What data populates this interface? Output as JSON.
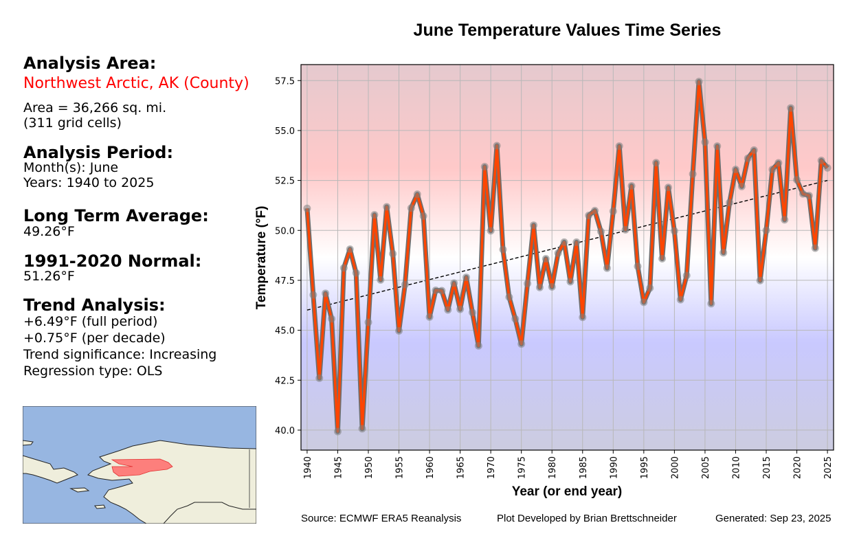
{
  "left_panel": {
    "area_heading": "Analysis Area:",
    "area_name": "Northwest Arctic, AK (County)",
    "area_size": "Area = 36,266 sq. mi.",
    "grid_cells": "(311 grid cells)",
    "period_heading": "Analysis Period:",
    "months": "Month(s): June",
    "years": "Years: 1940 to 2025",
    "lta_heading": "Long Term Average:",
    "lta_value": "49.26°F",
    "normal_heading": "1991-2020 Normal:",
    "normal_value": "51.26°F",
    "trend_heading": "Trend Analysis:",
    "trend_full": "+6.49°F (full period)",
    "trend_decade": "+0.75°F (per decade)",
    "trend_significance": "Trend significance: Increasing",
    "regression_type": "Regression type: OLS"
  },
  "colors": {
    "area_name": "#ff0000",
    "line": "#ff4500",
    "marker": "#808080",
    "highlight_region": "#ff6b6b",
    "water": "#97b6e1",
    "land": "#efeedc"
  },
  "footer": {
    "source": "Source: ECMWF ERA5 Reanalysis",
    "developer": "Plot Developed by Brian Brettschneider",
    "generated": "Generated: Sep 23, 2025"
  },
  "chart_data": {
    "type": "line",
    "title": "June Temperature Values Time Series",
    "xlabel": "Year (or end year)",
    "ylabel": "Temperature (°F)",
    "xlim": [
      1939,
      2026
    ],
    "ylim": [
      39.0,
      58.3
    ],
    "grid": true,
    "x_ticks": [
      1940,
      1945,
      1950,
      1955,
      1960,
      1965,
      1970,
      1975,
      1980,
      1985,
      1990,
      1995,
      2000,
      2005,
      2010,
      2015,
      2020,
      2025
    ],
    "y_ticks": [
      40.0,
      42.5,
      45.0,
      47.5,
      50.0,
      52.5,
      55.0,
      57.5
    ],
    "y_tick_labels": [
      "40.0",
      "42.5",
      "45.0",
      "47.5",
      "50.0",
      "52.5",
      "55.0",
      "57.5"
    ],
    "x": [
      1940,
      1941,
      1942,
      1943,
      1944,
      1945,
      1946,
      1947,
      1948,
      1949,
      1950,
      1951,
      1952,
      1953,
      1954,
      1955,
      1956,
      1957,
      1958,
      1959,
      1960,
      1961,
      1962,
      1963,
      1964,
      1965,
      1966,
      1967,
      1968,
      1969,
      1970,
      1971,
      1972,
      1973,
      1974,
      1975,
      1976,
      1977,
      1978,
      1979,
      1980,
      1981,
      1982,
      1983,
      1984,
      1985,
      1986,
      1987,
      1988,
      1989,
      1990,
      1991,
      1992,
      1993,
      1994,
      1995,
      1996,
      1997,
      1998,
      1999,
      2000,
      2001,
      2002,
      2003,
      2004,
      2005,
      2006,
      2007,
      2008,
      2009,
      2010,
      2011,
      2012,
      2013,
      2014,
      2015,
      2016,
      2017,
      2018,
      2019,
      2020,
      2021,
      2022,
      2023,
      2024,
      2025
    ],
    "series": [
      {
        "name": "June Temperature",
        "values": [
          51.1,
          46.77,
          42.6,
          46.85,
          45.57,
          39.93,
          48.12,
          49.06,
          47.87,
          40.07,
          45.4,
          50.78,
          47.52,
          51.18,
          48.83,
          44.97,
          47.29,
          51.12,
          51.81,
          50.72,
          45.66,
          47.0,
          46.98,
          46.02,
          47.36,
          46.05,
          47.65,
          45.89,
          44.22,
          53.19,
          49.98,
          54.24,
          49.04,
          46.66,
          45.57,
          44.31,
          47.34,
          50.26,
          47.14,
          48.58,
          47.17,
          48.86,
          49.41,
          47.43,
          49.41,
          45.65,
          50.75,
          50.99,
          49.94,
          48.11,
          50.96,
          54.22,
          50.03,
          52.23,
          48.2,
          46.4,
          47.11,
          53.39,
          48.58,
          52.15,
          49.97,
          46.53,
          47.74,
          52.82,
          57.45,
          54.42,
          46.33,
          54.22,
          48.88,
          51.39,
          53.05,
          52.2,
          53.61,
          54.02,
          47.49,
          50.0,
          53.05,
          53.38,
          50.53,
          56.13,
          52.53,
          51.83,
          51.74,
          49.11,
          53.5,
          53.13
        ]
      }
    ],
    "trend_line": {
      "name": "OLS trend",
      "x": [
        1940,
        2025
      ],
      "y": [
        46.01,
        52.5
      ]
    },
    "background": "vertical gradient: red (warm) at top, white near 48.5°F, blue (cool) at bottom"
  }
}
